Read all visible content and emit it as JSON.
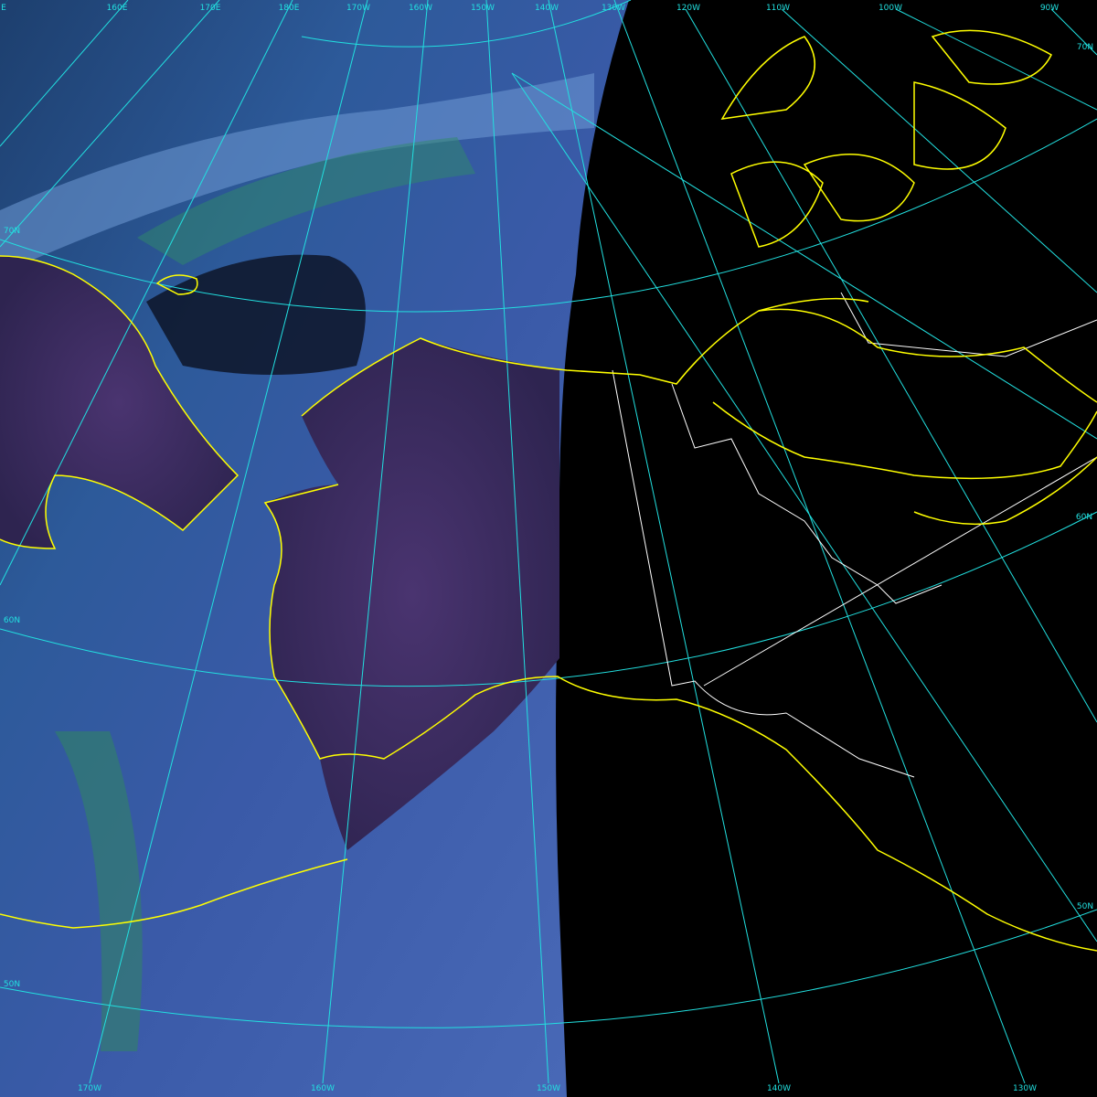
{
  "map": {
    "colors": {
      "graticule": "#22e0e0",
      "coastline": "#ffff00",
      "borders": "#ffffff",
      "night_side": "#000000"
    },
    "top_longitude_labels": [
      "E",
      "160E",
      "170E",
      "180E",
      "170W",
      "160W",
      "150W",
      "140W",
      "130W",
      "120W",
      "110W",
      "100W",
      "90W"
    ],
    "bottom_longitude_labels": [
      "170W",
      "160W",
      "150W",
      "140W",
      "130W"
    ],
    "left_latitude_labels": [
      "70N",
      "60N",
      "50N"
    ],
    "right_latitude_labels": [
      "70N",
      "60N",
      "50N"
    ]
  }
}
